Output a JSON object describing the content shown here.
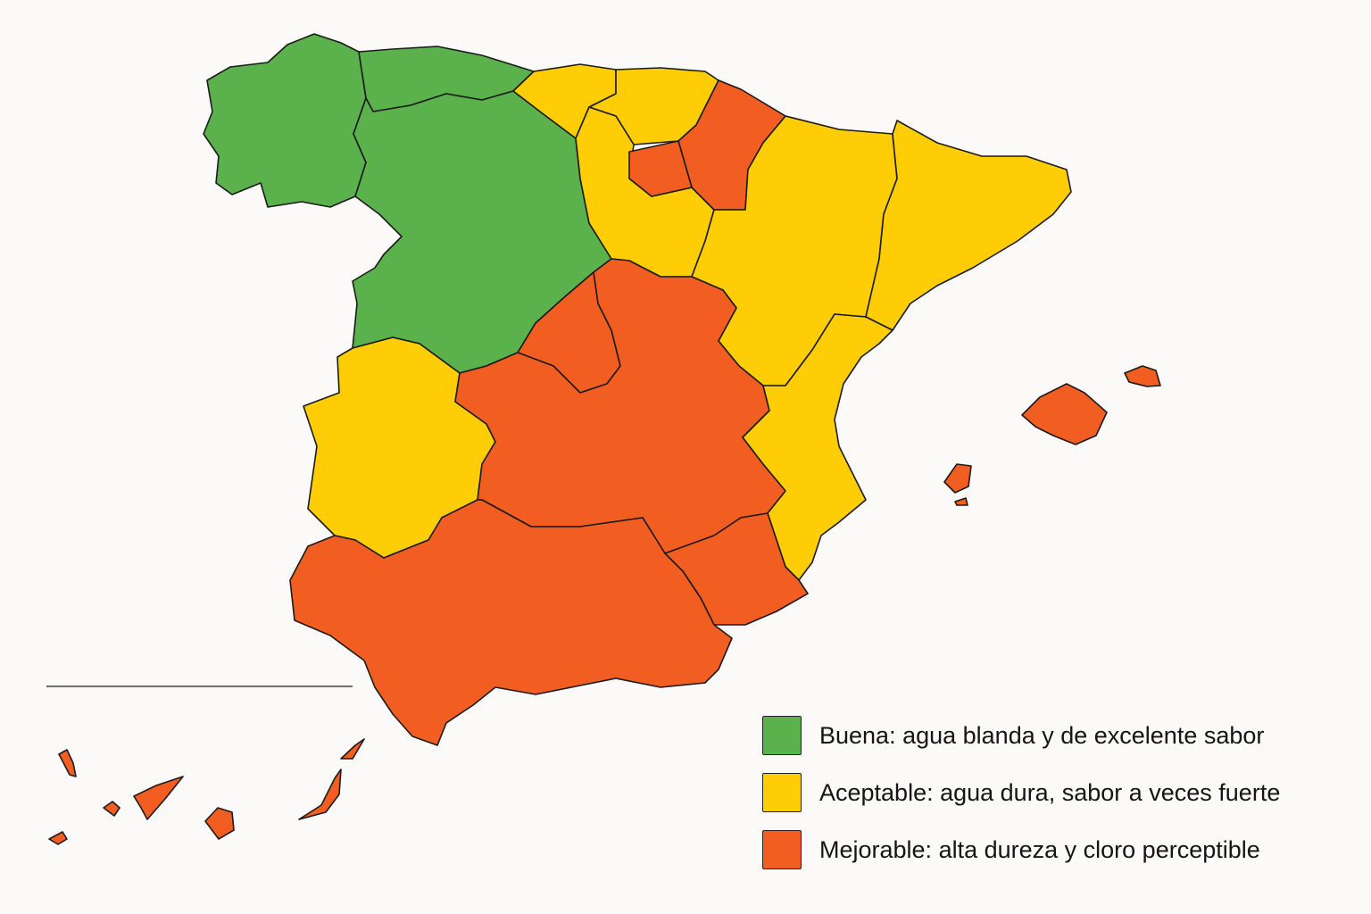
{
  "colors": {
    "buena": "#5bb14b",
    "aceptable": "#fecd05",
    "mejorable": "#f25e22",
    "border": "#1b1b1b",
    "background": "#fbfaf8"
  },
  "regions": [
    {
      "name": "Galicia",
      "category": "buena"
    },
    {
      "name": "Asturias",
      "category": "buena"
    },
    {
      "name": "Castilla y León",
      "category": "buena"
    },
    {
      "name": "Cantabria",
      "category": "aceptable"
    },
    {
      "name": "País Vasco",
      "category": "aceptable"
    },
    {
      "name": "Navarra",
      "category": "mejorable"
    },
    {
      "name": "La Rioja",
      "category": "mejorable"
    },
    {
      "name": "Aragón",
      "category": "aceptable"
    },
    {
      "name": "Cataluña",
      "category": "aceptable"
    },
    {
      "name": "Comunidad Valenciana",
      "category": "aceptable"
    },
    {
      "name": "Extremadura",
      "category": "aceptable"
    },
    {
      "name": "Madrid",
      "category": "mejorable"
    },
    {
      "name": "Castilla-La Mancha",
      "category": "mejorable"
    },
    {
      "name": "Andalucía",
      "category": "mejorable"
    },
    {
      "name": "Murcia",
      "category": "mejorable"
    },
    {
      "name": "Islas Baleares",
      "category": "mejorable"
    },
    {
      "name": "Islas Canarias",
      "category": "mejorable"
    }
  ],
  "legend": {
    "items": [
      {
        "key": "buena",
        "label": "Buena: agua blanda y de excelente sabor"
      },
      {
        "key": "aceptable",
        "label": "Aceptable: agua dura, sabor a veces fuerte"
      },
      {
        "key": "mejorable",
        "label": "Mejorable: alta dureza y cloro perceptible"
      }
    ]
  }
}
